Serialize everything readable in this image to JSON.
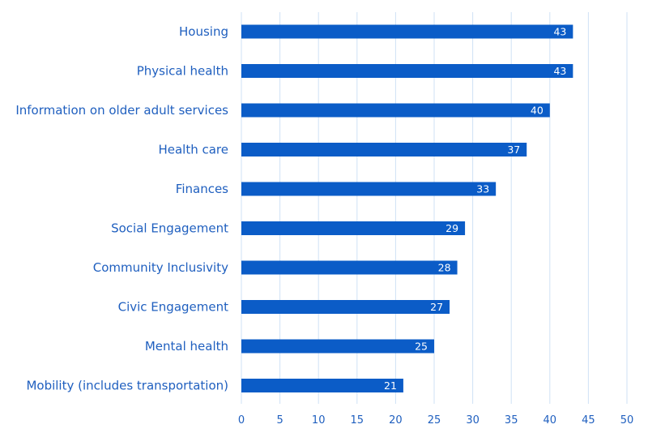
{
  "chart_data": {
    "type": "bar",
    "orientation": "horizontal",
    "title": "",
    "xlabel": "",
    "ylabel": "",
    "categories": [
      "Housing",
      "Physical health",
      "Information on older adult services",
      "Health care",
      "Finances",
      "Social Engagement",
      "Community Inclusivity",
      "Civic Engagement",
      "Mental health",
      "Mobility (includes transportation)"
    ],
    "values": [
      43,
      43,
      40,
      37,
      33,
      29,
      28,
      27,
      25,
      21
    ],
    "xlim": [
      0,
      50
    ],
    "xticks": [
      0,
      5,
      10,
      15,
      20,
      25,
      30,
      35,
      40,
      45,
      50
    ],
    "grid": "vertical",
    "legend": "none",
    "data_labels": "inside-end",
    "colors": {
      "bar": "#0b5cc7",
      "text": "#1f5fbf",
      "grid": "#cfe1f5",
      "bar_label": "#ffffff"
    }
  }
}
